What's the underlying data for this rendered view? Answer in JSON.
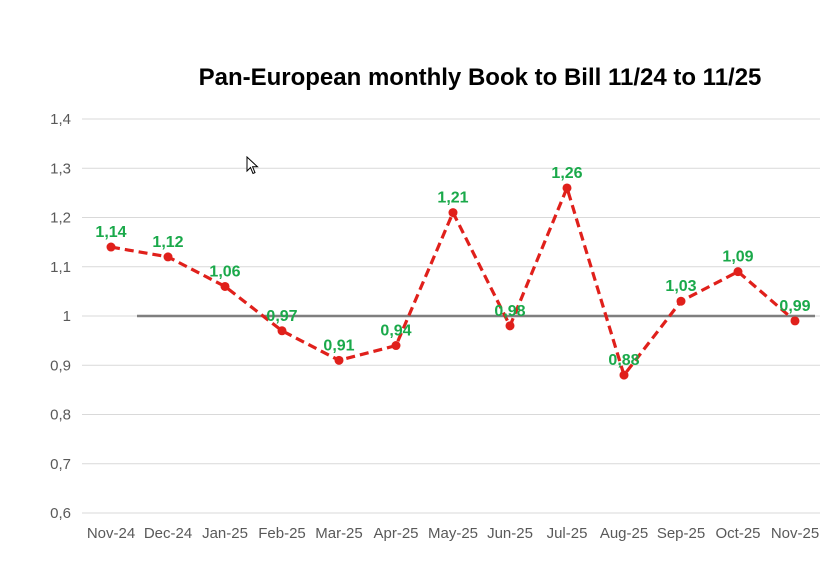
{
  "chart_data": {
    "type": "line",
    "title": "Pan-European monthly Book to Bill 11/24 to 11/25",
    "xlabel": "",
    "ylabel": "",
    "ylim": [
      0.6,
      1.4
    ],
    "yticks": [
      0.6,
      0.7,
      0.8,
      0.9,
      1.0,
      1.1,
      1.2,
      1.3,
      1.4
    ],
    "ytick_labels": [
      "0,6",
      "0,7",
      "0,8",
      "0,9",
      "1",
      "1,1",
      "1,2",
      "1,3",
      "1,4"
    ],
    "grid": true,
    "categories": [
      "Nov-24",
      "Dec-24",
      "Jan-25",
      "Feb-25",
      "Mar-25",
      "Apr-25",
      "May-25",
      "Jun-25",
      "Jul-25",
      "Aug-25",
      "Sep-25",
      "Oct-25",
      "Nov-25"
    ],
    "series": [
      {
        "name": "Book to Bill",
        "values": [
          1.14,
          1.12,
          1.06,
          0.97,
          0.91,
          0.94,
          1.21,
          0.98,
          1.26,
          0.88,
          1.03,
          1.09,
          0.99
        ],
        "labels": [
          "1,14",
          "1,12",
          "1,06",
          "0,97",
          "0,91",
          "0,94",
          "1,21",
          "0,98",
          "1,26",
          "0,88",
          "1,03",
          "1,09",
          "0,99"
        ],
        "color": "#e0201b",
        "label_color": "#1aa94a",
        "style": "dashed"
      }
    ],
    "reference_line": {
      "value": 1.0,
      "color": "#7f7f7f"
    }
  },
  "colors": {
    "grid": "#d9d9d9",
    "axis_text": "#595959"
  }
}
